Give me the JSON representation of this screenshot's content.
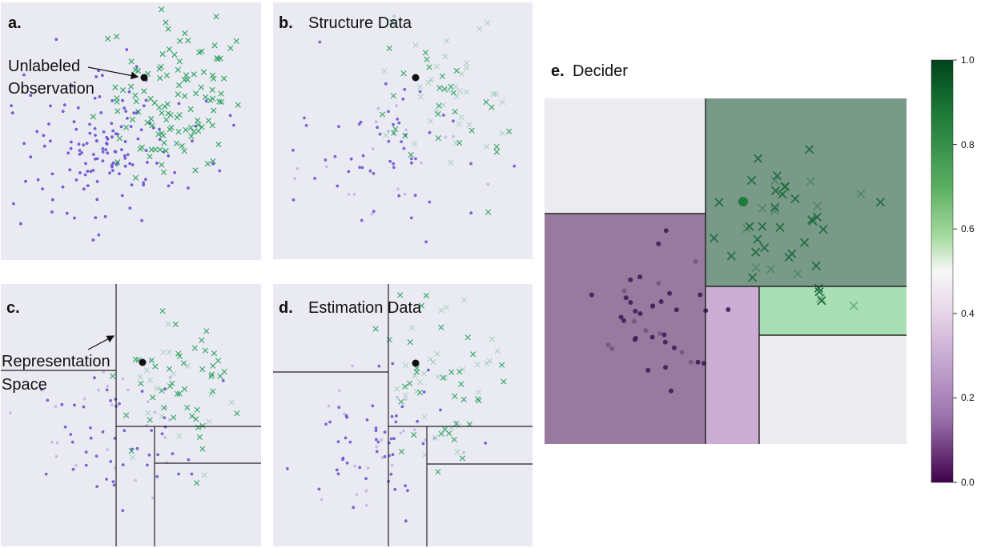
{
  "panels": {
    "a": {
      "letter": "a.",
      "title": "",
      "annotation_line1": "Unlabeled",
      "annotation_line2": "Observation"
    },
    "b": {
      "letter": "b.",
      "title": "Structure Data"
    },
    "c": {
      "letter": "c.",
      "title": "",
      "annotation_line1": "Representation",
      "annotation_line2": "Space"
    },
    "d": {
      "letter": "d.",
      "title": "Estimation Data"
    },
    "e": {
      "letter": "e.",
      "title": "Decider"
    }
  },
  "colorbar": {
    "ticks": [
      "1.0",
      "0.8",
      "0.6",
      "0.4",
      "0.2",
      "0.0"
    ]
  },
  "colors": {
    "panel_bg": "#eaeaf2",
    "purple": "#6a5acd",
    "green": "#2ca25f",
    "dark_green": "#2e7d4f",
    "dark_purple": "#3f1d5a",
    "observation": "#111111",
    "split_line": "#222222",
    "region_green": "#7a9a89",
    "region_purple": "#977a9e",
    "region_lightpurple": "#ccaed4",
    "region_lightgreen": "#a9dfb4",
    "region_light": "#ecebf0"
  }
}
